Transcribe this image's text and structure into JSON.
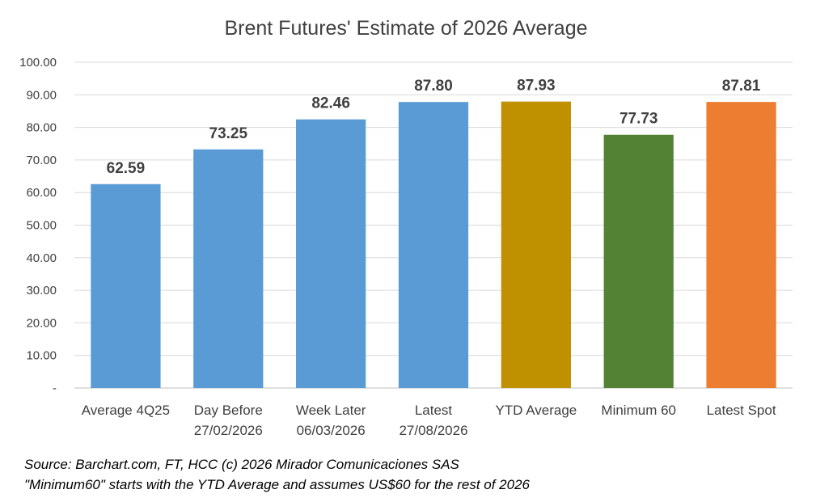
{
  "chart_data": {
    "type": "bar",
    "title": "Brent Futures' Estimate of 2026 Average",
    "categories": [
      [
        "Average 4Q25"
      ],
      [
        "Day Before",
        "27/02/2026"
      ],
      [
        "Week Later",
        "06/03/2026"
      ],
      [
        "Latest",
        "27/08/2026"
      ],
      [
        "YTD Average"
      ],
      [
        "Minimum 60"
      ],
      [
        "Latest Spot"
      ]
    ],
    "values": [
      62.59,
      73.25,
      82.46,
      87.8,
      87.93,
      77.73,
      87.81
    ],
    "value_labels": [
      "62.59",
      "73.25",
      "82.46",
      "87.80",
      "87.93",
      "77.73",
      "87.81"
    ],
    "bar_colors": [
      "#5b9bd5",
      "#5b9bd5",
      "#5b9bd5",
      "#5b9bd5",
      "#bf9000",
      "#548235",
      "#ed7d31"
    ],
    "ylim": [
      0,
      100
    ],
    "yticks": [
      0,
      10,
      20,
      30,
      40,
      50,
      60,
      70,
      80,
      90,
      100
    ],
    "ytick_labels": [
      "-",
      "10.00",
      "20.00",
      "30.00",
      "40.00",
      "50.00",
      "60.00",
      "70.00",
      "80.00",
      "90.00",
      "100.00"
    ],
    "grid": true,
    "legend": "none",
    "gridline_color": "#d9d9d9",
    "axis_line_color": "#bfbfbf",
    "text_color": "#404040"
  },
  "footnotes": {
    "source": "Source: Barchart.com, FT, HCC (c) 2026 Mirador Comunicaciones SAS",
    "note": "\"Minimum60\" starts with the YTD Average and assumes US$60 for the rest of 2026"
  }
}
